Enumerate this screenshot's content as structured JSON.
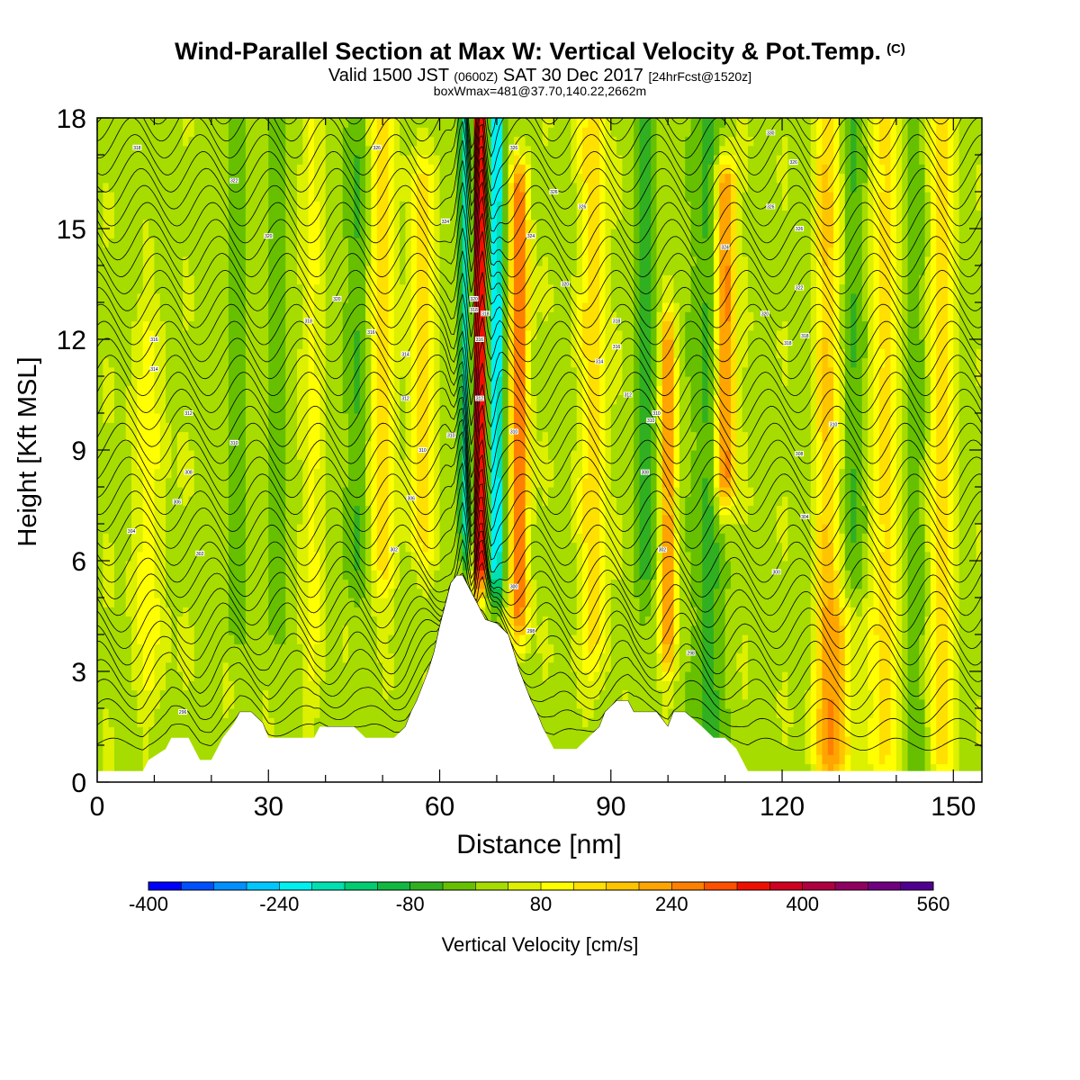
{
  "header": {
    "title": "Wind-Parallel Section at Max W: Vertical Velocity & Pot.Temp.",
    "title_mark": "(C)",
    "valid_a": "Valid 1500 JST",
    "valid_utc": "(0600Z)",
    "valid_b": "SAT 30 Dec 2017",
    "fcst": "[24hrFcst@1520z]",
    "boxinfo": "boxWmax=481@37.70,140.22,2662m"
  },
  "chart_data": {
    "type": "heatmap",
    "xlabel": "Distance [nm]",
    "ylabel": "Height [Kft MSL]",
    "xlim": [
      0,
      155
    ],
    "ylim": [
      0,
      18
    ],
    "xticks": [
      0,
      30,
      60,
      90,
      120,
      150
    ],
    "yticks": [
      0,
      3,
      6,
      9,
      12,
      15,
      18
    ],
    "colorbar": {
      "label": "Vertical Velocity [cm/s]",
      "min": -400,
      "max": 560,
      "step": 40,
      "tick_labels": [
        "-400",
        "-240",
        "-80",
        "80",
        "240",
        "400",
        "560"
      ],
      "colors": [
        "#0000ff",
        "#0050ff",
        "#0090ff",
        "#00c8ff",
        "#00f0f0",
        "#00e0b0",
        "#00cc70",
        "#10b840",
        "#30b020",
        "#66c000",
        "#a6dc00",
        "#dcf000",
        "#ffff00",
        "#ffe000",
        "#ffc400",
        "#ffa400",
        "#ff8000",
        "#ff5000",
        "#f01000",
        "#d00020",
        "#b00040",
        "#900060",
        "#700080",
        "#500090"
      ]
    },
    "terrain_kft": [
      [
        0,
        0.3
      ],
      [
        8,
        0.3
      ],
      [
        9,
        0.6
      ],
      [
        12,
        0.9
      ],
      [
        13,
        1.2
      ],
      [
        16,
        1.2
      ],
      [
        17,
        0.9
      ],
      [
        18,
        0.6
      ],
      [
        20,
        0.6
      ],
      [
        21,
        0.9
      ],
      [
        22,
        1.2
      ],
      [
        24,
        1.6
      ],
      [
        25,
        1.9
      ],
      [
        27,
        1.9
      ],
      [
        29,
        1.6
      ],
      [
        30,
        1.2
      ],
      [
        31,
        1.2
      ],
      [
        38,
        1.2
      ],
      [
        39,
        1.5
      ],
      [
        45,
        1.5
      ],
      [
        47,
        1.2
      ],
      [
        52,
        1.2
      ],
      [
        54,
        1.5
      ],
      [
        55,
        1.9
      ],
      [
        56,
        2.2
      ],
      [
        57,
        2.6
      ],
      [
        58,
        3.0
      ],
      [
        59,
        3.5
      ],
      [
        60,
        4.2
      ],
      [
        61,
        4.8
      ],
      [
        62,
        5.4
      ],
      [
        63,
        5.6
      ],
      [
        64,
        5.6
      ],
      [
        65,
        5.3
      ],
      [
        66,
        5.0
      ],
      [
        67,
        4.7
      ],
      [
        68,
        4.4
      ],
      [
        70,
        4.3
      ],
      [
        72,
        4.0
      ],
      [
        73,
        3.5
      ],
      [
        74,
        3.0
      ],
      [
        75,
        2.6
      ],
      [
        76,
        2.2
      ],
      [
        77,
        1.9
      ],
      [
        78,
        1.5
      ],
      [
        79,
        1.2
      ],
      [
        80,
        0.9
      ],
      [
        84,
        0.9
      ],
      [
        86,
        1.2
      ],
      [
        88,
        1.5
      ],
      [
        89,
        1.9
      ],
      [
        91,
        2.2
      ],
      [
        93,
        2.2
      ],
      [
        94,
        1.9
      ],
      [
        98,
        1.9
      ],
      [
        100,
        1.5
      ],
      [
        101,
        1.9
      ],
      [
        103,
        1.9
      ],
      [
        106,
        1.5
      ],
      [
        108,
        1.2
      ],
      [
        110,
        1.2
      ],
      [
        112,
        0.9
      ],
      [
        113,
        0.6
      ],
      [
        114,
        0.3
      ],
      [
        155,
        0.3
      ]
    ],
    "vertical_velocity_features": [
      {
        "x": 67,
        "w": 0.9,
        "top_kft": 18,
        "bottom_kft": 6.2,
        "peak": 460
      },
      {
        "x": 70,
        "w": 1.3,
        "top_kft": 18,
        "bottom_kft": 6.0,
        "peak": -270
      },
      {
        "x": 64.5,
        "w": 1.0,
        "top_kft": 18,
        "bottom_kft": 7.0,
        "peak": -220
      },
      {
        "x": 74,
        "w": 1.6,
        "top_kft": 16,
        "bottom_kft": 5.0,
        "peak": 260
      },
      {
        "x": 110,
        "w": 1.8,
        "top_kft": 16,
        "bottom_kft": 8.5,
        "peak": 250
      },
      {
        "x": 100,
        "w": 1.4,
        "top_kft": 12,
        "bottom_kft": 4.0,
        "peak": 200
      },
      {
        "x": 107,
        "w": 2.4,
        "top_kft": 18,
        "bottom_kft": 1.0,
        "peak": -90
      },
      {
        "x": 87,
        "w": 2.6,
        "top_kft": 18,
        "bottom_kft": 4.0,
        "peak": 110
      },
      {
        "x": 96,
        "w": 2.2,
        "top_kft": 18,
        "bottom_kft": 6.0,
        "peak": -80
      },
      {
        "x": 128,
        "w": 2.4,
        "top_kft": 18,
        "bottom_kft": 1.0,
        "peak": 130
      },
      {
        "x": 138,
        "w": 2.2,
        "top_kft": 18,
        "bottom_kft": 1.0,
        "peak": 120
      },
      {
        "x": 148,
        "w": 2.4,
        "top_kft": 18,
        "bottom_kft": 1.0,
        "peak": 110
      },
      {
        "x": 133,
        "w": 2.0,
        "top_kft": 18,
        "bottom_kft": 1.0,
        "peak": -70
      },
      {
        "x": 143,
        "w": 1.8,
        "top_kft": 18,
        "bottom_kft": 1.0,
        "peak": -60
      },
      {
        "x": 50,
        "w": 2.4,
        "top_kft": 18,
        "bottom_kft": 6.0,
        "peak": 110
      },
      {
        "x": 45,
        "w": 2.0,
        "top_kft": 18,
        "bottom_kft": 6.0,
        "peak": -70
      },
      {
        "x": 57,
        "w": 2.4,
        "top_kft": 16,
        "bottom_kft": 7.0,
        "peak": 110
      },
      {
        "x": 38,
        "w": 2.0,
        "top_kft": 18,
        "bottom_kft": 3.0,
        "peak": 60
      },
      {
        "x": 31,
        "w": 1.6,
        "top_kft": 18,
        "bottom_kft": 5.0,
        "peak": -60
      },
      {
        "x": 24,
        "w": 1.6,
        "top_kft": 18,
        "bottom_kft": 5.0,
        "peak": -60
      },
      {
        "x": 9,
        "w": 3.5,
        "top_kft": 12,
        "bottom_kft": 3.0,
        "peak": 60
      },
      {
        "x": 131,
        "w": 4.0,
        "top_kft": 4.0,
        "bottom_kft": 1.0,
        "peak": 130
      }
    ],
    "theta_contour_count": 40,
    "contour_labels": [
      {
        "x": 7,
        "y": 17.2,
        "t": "318"
      },
      {
        "x": 10,
        "y": 12,
        "t": "316"
      },
      {
        "x": 10,
        "y": 11.2,
        "t": "314"
      },
      {
        "x": 16,
        "y": 10,
        "t": "312"
      },
      {
        "x": 24,
        "y": 9.2,
        "t": "310"
      },
      {
        "x": 16,
        "y": 8.4,
        "t": "308"
      },
      {
        "x": 14,
        "y": 7.6,
        "t": "306"
      },
      {
        "x": 6,
        "y": 6.8,
        "t": "304"
      },
      {
        "x": 18,
        "y": 6.2,
        "t": "302"
      },
      {
        "x": 15,
        "y": 1.9,
        "t": "296"
      },
      {
        "x": 24,
        "y": 16.3,
        "t": "322"
      },
      {
        "x": 30,
        "y": 14.8,
        "t": "320"
      },
      {
        "x": 37,
        "y": 12.5,
        "t": "318"
      },
      {
        "x": 42,
        "y": 13.1,
        "t": "320"
      },
      {
        "x": 48,
        "y": 12.2,
        "t": "316"
      },
      {
        "x": 54,
        "y": 11.6,
        "t": "314"
      },
      {
        "x": 54,
        "y": 10.4,
        "t": "312"
      },
      {
        "x": 57,
        "y": 9.0,
        "t": "310"
      },
      {
        "x": 55,
        "y": 7.7,
        "t": "306"
      },
      {
        "x": 52,
        "y": 6.3,
        "t": "302"
      },
      {
        "x": 49,
        "y": 17.2,
        "t": "326"
      },
      {
        "x": 61,
        "y": 15.2,
        "t": "324"
      },
      {
        "x": 62,
        "y": 9.4,
        "t": "310"
      },
      {
        "x": 66,
        "y": 12.8,
        "t": "318"
      },
      {
        "x": 66,
        "y": 13.1,
        "t": "320"
      },
      {
        "x": 67,
        "y": 12.0,
        "t": "316"
      },
      {
        "x": 68,
        "y": 12.7,
        "t": "318"
      },
      {
        "x": 67,
        "y": 10.4,
        "t": "312"
      },
      {
        "x": 73,
        "y": 17.2,
        "t": "326"
      },
      {
        "x": 76,
        "y": 14.8,
        "t": "324"
      },
      {
        "x": 80,
        "y": 16.0,
        "t": "326"
      },
      {
        "x": 85,
        "y": 15.6,
        "t": "326"
      },
      {
        "x": 82,
        "y": 13.5,
        "t": "320"
      },
      {
        "x": 73,
        "y": 9.5,
        "t": "310"
      },
      {
        "x": 73,
        "y": 5.3,
        "t": "300"
      },
      {
        "x": 76,
        "y": 4.1,
        "t": "298"
      },
      {
        "x": 91,
        "y": 12.5,
        "t": "318"
      },
      {
        "x": 91,
        "y": 11.8,
        "t": "316"
      },
      {
        "x": 88,
        "y": 11.4,
        "t": "314"
      },
      {
        "x": 93,
        "y": 10.5,
        "t": "312"
      },
      {
        "x": 97,
        "y": 9.8,
        "t": "310"
      },
      {
        "x": 98,
        "y": 10.0,
        "t": "310"
      },
      {
        "x": 96,
        "y": 8.4,
        "t": "308"
      },
      {
        "x": 99,
        "y": 6.3,
        "t": "302"
      },
      {
        "x": 104,
        "y": 3.5,
        "t": "298"
      },
      {
        "x": 110,
        "y": 14.5,
        "t": "324"
      },
      {
        "x": 117,
        "y": 12.7,
        "t": "320"
      },
      {
        "x": 121,
        "y": 11.9,
        "t": "318"
      },
      {
        "x": 122,
        "y": 16.8,
        "t": "326"
      },
      {
        "x": 118,
        "y": 15.6,
        "t": "326"
      },
      {
        "x": 123,
        "y": 15.0,
        "t": "326"
      },
      {
        "x": 123,
        "y": 13.4,
        "t": "322"
      },
      {
        "x": 124,
        "y": 12.1,
        "t": "318"
      },
      {
        "x": 129,
        "y": 9.7,
        "t": "310"
      },
      {
        "x": 123,
        "y": 8.9,
        "t": "308"
      },
      {
        "x": 124,
        "y": 7.2,
        "t": "304"
      },
      {
        "x": 119,
        "y": 5.7,
        "t": "300"
      },
      {
        "x": 118,
        "y": 17.6,
        "t": "330"
      }
    ]
  }
}
